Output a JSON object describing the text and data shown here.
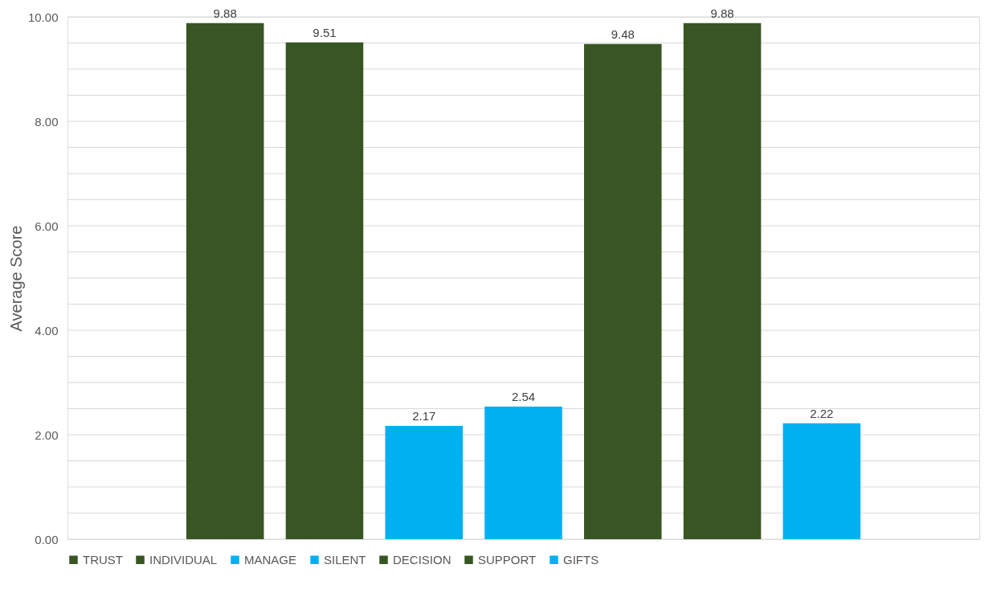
{
  "chart_data": {
    "type": "bar",
    "ylabel": "Average Score",
    "categories": [
      null
    ],
    "series": [
      {
        "name": "TRUST",
        "color": "#375623",
        "values": [
          9.88
        ]
      },
      {
        "name": "INDIVIDUAL",
        "color": "#375623",
        "values": [
          9.51
        ]
      },
      {
        "name": "MANAGE",
        "color": "#00b0f0",
        "values": [
          2.17
        ]
      },
      {
        "name": "SILENT",
        "color": "#00b0f0",
        "values": [
          2.54
        ]
      },
      {
        "name": "DECISION",
        "color": "#375623",
        "values": [
          9.48
        ]
      },
      {
        "name": "SUPPORT",
        "color": "#375623",
        "values": [
          9.88
        ]
      },
      {
        "name": "GIFTS",
        "color": "#00b0f0",
        "values": [
          2.22
        ]
      }
    ],
    "ylim": [
      0,
      10
    ],
    "yticks": [
      {
        "value": 0,
        "label": "0.00"
      },
      {
        "value": 0.5,
        "label": null
      },
      {
        "value": 1,
        "label": null
      },
      {
        "value": 1.5,
        "label": null
      },
      {
        "value": 2,
        "label": "2.00"
      },
      {
        "value": 2.5,
        "label": null
      },
      {
        "value": 3,
        "label": null
      },
      {
        "value": 3.5,
        "label": null
      },
      {
        "value": 4,
        "label": "4.00"
      },
      {
        "value": 4.5,
        "label": null
      },
      {
        "value": 5,
        "label": null
      },
      {
        "value": 5.5,
        "label": null
      },
      {
        "value": 6,
        "label": "6.00"
      },
      {
        "value": 6.5,
        "label": null
      },
      {
        "value": 7,
        "label": null
      },
      {
        "value": 7.5,
        "label": null
      },
      {
        "value": 8,
        "label": "8.00"
      },
      {
        "value": 8.5,
        "label": null
      },
      {
        "value": 9,
        "label": null
      },
      {
        "value": 9.5,
        "label": null
      },
      {
        "value": 10,
        "label": "10.00"
      }
    ],
    "grid": "y",
    "legend": "bottom",
    "tick_labels": "y",
    "data_labels": true
  }
}
